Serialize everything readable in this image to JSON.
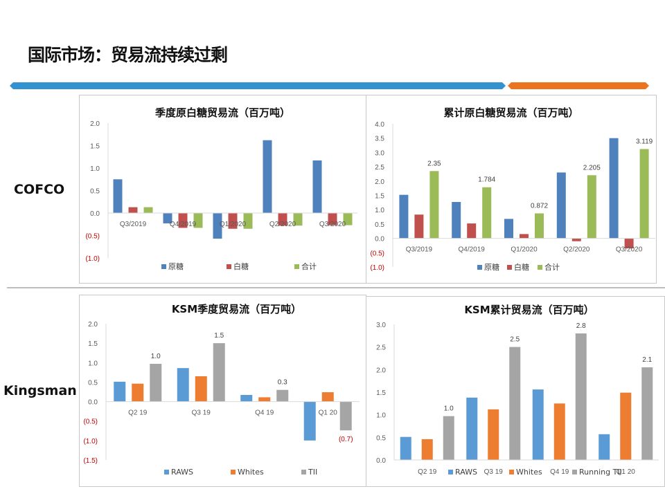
{
  "page": {
    "title": "国际市场：贸易流持续过剩",
    "section_labels": [
      "COFCO",
      "Kingsman"
    ]
  },
  "colors": {
    "blue": "#4f81bd",
    "red": "#c0504d",
    "green": "#9bbb59",
    "ksm_blue": "#5b9bd5",
    "ksm_orange": "#ed7d31",
    "ksm_gray": "#a5a5a5",
    "negative_tick": "#c00000",
    "accent_blue": "#3393d0",
    "accent_orange": "#ec7320"
  },
  "chart_data": [
    {
      "type": "bar",
      "title": "季度原白糖贸易流（百万吨）",
      "categories": [
        "Q3/2019",
        "Q4/2019",
        "Q1/2020",
        "Q2/2020",
        "Q3/2020"
      ],
      "series": [
        {
          "name": "原糖",
          "color": "#4f81bd",
          "values": [
            0.75,
            -0.23,
            -0.57,
            1.62,
            1.17
          ]
        },
        {
          "name": "白糖",
          "color": "#c0504d",
          "values": [
            0.13,
            -0.33,
            -0.35,
            -0.28,
            -0.27
          ]
        },
        {
          "name": "合计",
          "color": "#9bbb59",
          "values": [
            0.13,
            -0.33,
            -0.35,
            -0.28,
            -0.27
          ]
        }
      ],
      "yticks": [
        "2.0",
        "1.5",
        "1.0",
        "0.5",
        "0.0",
        "(0.5)",
        "(1.0)"
      ],
      "ylim": [
        -1.0,
        2.0
      ],
      "data_labels": [],
      "legend": "bottom"
    },
    {
      "type": "bar",
      "title": "累计原白糖贸易流（百万吨）",
      "categories": [
        "Q3/2019",
        "Q4/2019",
        "Q1/2020",
        "Q2/2020",
        "Q3/2020"
      ],
      "series": [
        {
          "name": "原糖",
          "color": "#4f81bd",
          "values": [
            1.52,
            1.27,
            0.68,
            2.3,
            3.5
          ]
        },
        {
          "name": "白糖",
          "color": "#c0504d",
          "values": [
            0.83,
            0.52,
            0.15,
            -0.1,
            -0.35
          ]
        },
        {
          "name": "合计",
          "color": "#9bbb59",
          "values": [
            2.35,
            1.784,
            0.872,
            2.205,
            3.119
          ]
        }
      ],
      "yticks": [
        "4.0",
        "3.5",
        "3.0",
        "2.5",
        "2.0",
        "1.5",
        "1.0",
        "0.5",
        "0.0",
        "(0.5)",
        "(1.0)"
      ],
      "ylim": [
        -1.0,
        4.0
      ],
      "data_labels": [
        "2.35",
        "1.784",
        "0.872",
        "2.205",
        "3.119"
      ],
      "legend": "bottom"
    },
    {
      "type": "bar",
      "title": "KSM季度贸易流（百万吨）",
      "categories": [
        "Q2 19",
        "Q3 19",
        "Q4 19",
        "Q1 20"
      ],
      "series": [
        {
          "name": "RAWS",
          "color": "#5b9bd5",
          "values": [
            0.51,
            0.86,
            0.17,
            -1.0
          ]
        },
        {
          "name": "Whites",
          "color": "#ed7d31",
          "values": [
            0.46,
            0.65,
            0.11,
            0.24
          ]
        },
        {
          "name": "TII",
          "color": "#a5a5a5",
          "values": [
            0.97,
            1.5,
            0.3,
            -0.74
          ]
        }
      ],
      "yticks": [
        "2.0",
        "1.5",
        "1.0",
        "0.5",
        "0.0",
        "(0.5)",
        "(1.0)",
        "(1.5)"
      ],
      "ylim": [
        -1.5,
        2.0
      ],
      "data_labels": [
        "1.0",
        "1.5",
        "0.3",
        "(0.7)"
      ],
      "legend": "bottom"
    },
    {
      "type": "bar",
      "title": "KSM累计贸易流（百万吨）",
      "categories": [
        "Q2 19",
        "Q3 19",
        "Q4 19",
        "Q1 20"
      ],
      "series": [
        {
          "name": "RAWS",
          "color": "#5b9bd5",
          "values": [
            0.51,
            1.38,
            1.56,
            0.57
          ]
        },
        {
          "name": "Whites",
          "color": "#ed7d31",
          "values": [
            0.46,
            1.12,
            1.25,
            1.49
          ]
        },
        {
          "name": "Running TII",
          "color": "#a5a5a5",
          "values": [
            0.97,
            2.5,
            2.8,
            2.05
          ]
        }
      ],
      "yticks": [
        "3.0",
        "2.5",
        "2.0",
        "1.5",
        "1.0",
        "0.5",
        "0.0"
      ],
      "ylim": [
        0,
        3.0
      ],
      "data_labels": [
        "1.0",
        "2.5",
        "2.8",
        "2.1"
      ],
      "legend": "bottom"
    }
  ]
}
